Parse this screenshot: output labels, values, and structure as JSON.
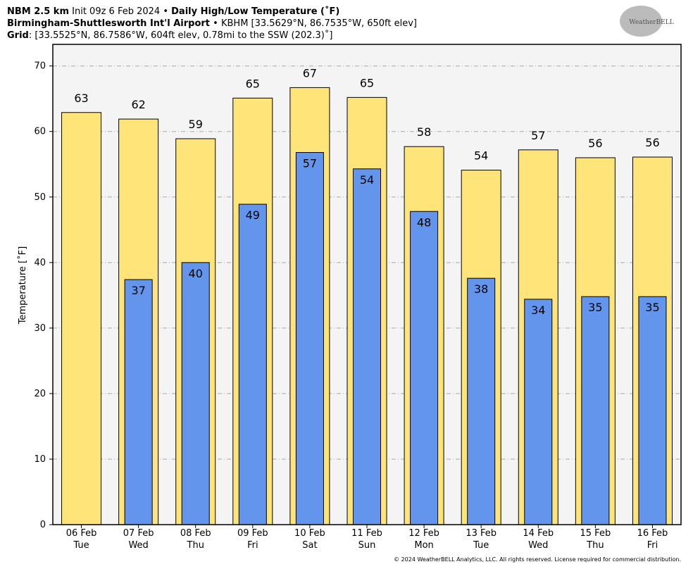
{
  "header": {
    "model": "NBM 2.5 km",
    "init": "Init 09z 6 Feb 2024",
    "product": "Daily High/Low Temperature (˚F)",
    "station": "Birmingham-Shuttlesworth Int'l Airport",
    "station_info": "KBHM [33.5629°N, 86.7535°W, 650ft elev]",
    "grid_label": "Grid",
    "grid_info": ": [33.5525°N, 86.7586°W, 604ft elev, 0.78mi to the SSW (202.3)˚]",
    "logo": "WeatherBELL",
    "footer": "© 2024 WeatherBELL Analytics, LLC. All rights reserved. License required for commercial distribution."
  },
  "chart_data": {
    "type": "bar",
    "y_label": "Temperature [˚F]",
    "categories": [
      "06 Feb",
      "07 Feb",
      "08 Feb",
      "09 Feb",
      "10 Feb",
      "11 Feb",
      "12 Feb",
      "13 Feb",
      "14 Feb",
      "15 Feb",
      "16 Feb"
    ],
    "weekdays": [
      "Tue",
      "Wed",
      "Thu",
      "Fri",
      "Sat",
      "Sun",
      "Mon",
      "Tue",
      "Wed",
      "Thu",
      "Fri"
    ],
    "series": [
      {
        "name": "High",
        "color": "#ffe47a",
        "values": [
          62.9,
          61.9,
          58.9,
          65.1,
          66.7,
          65.2,
          57.7,
          54.1,
          57.2,
          56.0,
          56.1
        ],
        "value_labels": [
          "63",
          "62",
          "59",
          "65",
          "67",
          "65",
          "58",
          "54",
          "57",
          "56",
          "56"
        ]
      },
      {
        "name": "Low",
        "color": "#6495ed",
        "values": [
          null,
          37.4,
          40.0,
          48.9,
          56.8,
          54.3,
          47.8,
          37.6,
          34.4,
          34.8,
          34.8
        ],
        "value_labels": [
          null,
          "37",
          "40",
          "49",
          "57",
          "54",
          "48",
          "38",
          "34",
          "35",
          "35"
        ]
      }
    ],
    "ylim": [
      0,
      73.3
    ],
    "yticks": [
      0,
      10,
      20,
      30,
      40,
      50,
      60,
      70
    ],
    "grid": true
  }
}
